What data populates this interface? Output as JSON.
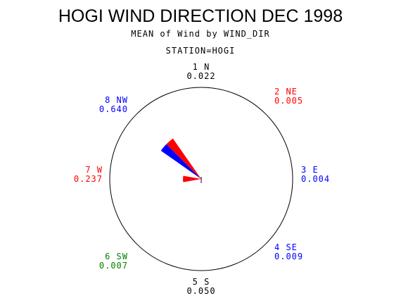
{
  "chart_data": {
    "type": "polar-bar",
    "title": "HOGI WIND DIRECTION DEC 1998",
    "subtitle": "MEAN of Wind by WIND_DIR",
    "station": "STATION=HOGI",
    "directions": [
      {
        "label": "1 N",
        "value": 0.022,
        "display": "0.022",
        "color": "#000000"
      },
      {
        "label": "2 NE",
        "value": 0.005,
        "display": "0.005",
        "color": "#ff0000"
      },
      {
        "label": "3 E",
        "value": 0.004,
        "display": "0.004",
        "color": "#0000ff"
      },
      {
        "label": "4 SE",
        "value": 0.009,
        "display": "0.009",
        "color": "#0000ff"
      },
      {
        "label": "5 S",
        "value": 0.05,
        "display": "0.050",
        "color": "#000000"
      },
      {
        "label": "6 SW",
        "value": 0.007,
        "display": "0.007",
        "color": "#008000"
      },
      {
        "label": "7 W",
        "value": 0.237,
        "display": "0.237",
        "color": "#ff0000"
      },
      {
        "label": "8 NW",
        "value": 0.64,
        "display": "0.640",
        "color": "#0000ff"
      }
    ],
    "wedge_colors": {
      "upper": "#0000ff",
      "lower": "#ff0000"
    }
  }
}
